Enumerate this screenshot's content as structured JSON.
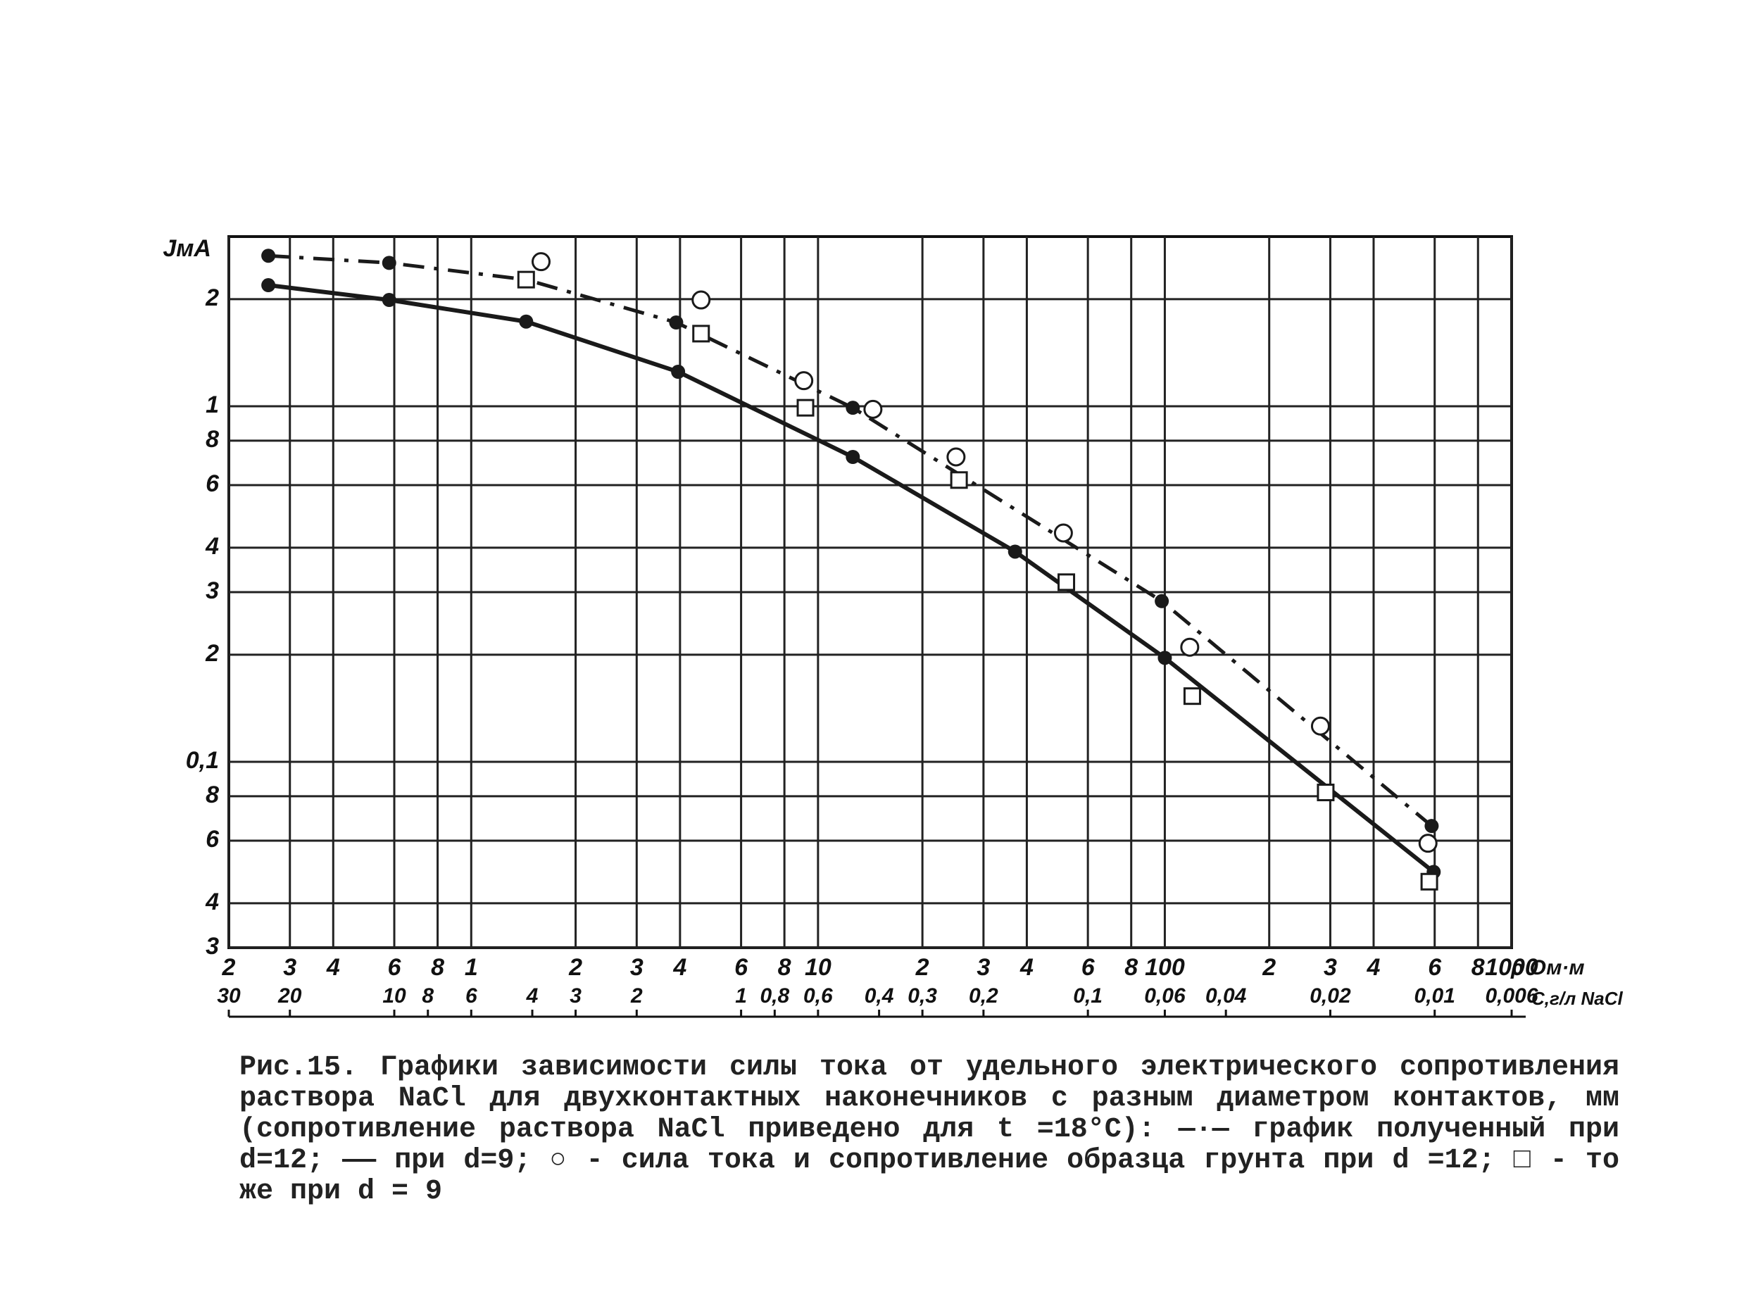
{
  "chart_data": {
    "type": "line",
    "y_label": "JмА",
    "x_label": "ρ Ом·м",
    "x2_label": "C,г/л NaCl",
    "xscale": "log",
    "yscale": "log",
    "x2scale": "log",
    "grid": true,
    "xlim": [
      0.2,
      1000
    ],
    "ylim": [
      0.03,
      3
    ],
    "x2lim": [
      30,
      0.006
    ],
    "xticks": [
      {
        "value": 0.2,
        "label": "2"
      },
      {
        "value": 0.3,
        "label": "3"
      },
      {
        "value": 0.4,
        "label": "4"
      },
      {
        "value": 0.6,
        "label": "6"
      },
      {
        "value": 0.8,
        "label": "8"
      },
      1,
      2,
      3,
      4,
      6,
      8,
      10,
      {
        "value": 20,
        "label": "2"
      },
      {
        "value": 30,
        "label": "3"
      },
      {
        "value": 40,
        "label": "4"
      },
      {
        "value": 60,
        "label": "6"
      },
      {
        "value": 80,
        "label": "8"
      },
      100,
      {
        "value": 200,
        "label": "2"
      },
      {
        "value": 300,
        "label": "3"
      },
      {
        "value": 400,
        "label": "4"
      },
      {
        "value": 600,
        "label": "6"
      },
      {
        "value": 800,
        "label": "8"
      },
      1000
    ],
    "yticks": [
      2,
      1,
      {
        "value": 0.8,
        "label": "8"
      },
      {
        "value": 0.6,
        "label": "6"
      },
      {
        "value": 0.4,
        "label": "4"
      },
      {
        "value": 0.3,
        "label": "3"
      },
      {
        "value": 0.2,
        "label": "2"
      },
      {
        "value": 0.1,
        "label": "0,1"
      },
      {
        "value": 0.08,
        "label": "8"
      },
      {
        "value": 0.06,
        "label": "6"
      },
      {
        "value": 0.04,
        "label": "4"
      },
      {
        "value": 0.03,
        "label": "3"
      }
    ],
    "x2ticks": [
      30,
      20,
      10,
      8,
      6,
      4,
      3,
      2,
      1,
      {
        "value": 0.8,
        "label": "0,8"
      },
      {
        "value": 0.6,
        "label": "0,6"
      },
      {
        "value": 0.4,
        "label": "0,4"
      },
      {
        "value": 0.3,
        "label": "0,3"
      },
      {
        "value": 0.2,
        "label": "0,2"
      },
      {
        "value": 0.1,
        "label": "0,1"
      },
      {
        "value": 0.06,
        "label": "0,06"
      },
      {
        "value": 0.04,
        "label": "0,04"
      },
      {
        "value": 0.02,
        "label": "0,02"
      },
      {
        "value": 0.01,
        "label": "0,01"
      },
      {
        "value": 0.006,
        "label": "0,006"
      }
    ],
    "series": [
      {
        "color": "#1a1a1a",
        "line": "dashed",
        "marker": "filled-circle",
        "x": [
          0.26,
          0.58,
          1.44,
          3.9,
          12.6,
          98,
          588
        ],
        "values": [
          2.65,
          2.53,
          2.27,
          1.72,
          0.99,
          0.283,
          0.066
        ]
      },
      {
        "color": "#1a1a1a",
        "line": "solid",
        "marker": "filled-circle",
        "x": [
          0.26,
          0.58,
          1.44,
          3.95,
          12.6,
          37,
          100,
          596
        ],
        "values": [
          2.19,
          1.99,
          1.73,
          1.25,
          0.72,
          0.39,
          0.196,
          0.049
        ]
      },
      {
        "color": "#1a1a1a",
        "line": "none",
        "marker": "open-circle",
        "x": [
          1.59,
          4.6,
          9.1,
          14.4,
          25,
          51,
          118,
          281,
          574
        ],
        "values": [
          2.55,
          1.99,
          1.18,
          0.98,
          0.72,
          0.44,
          0.21,
          0.126,
          0.059
        ]
      },
      {
        "color": "#1a1a1a",
        "line": "none",
        "marker": "square",
        "x": [
          1.44,
          4.6,
          9.2,
          25.5,
          52,
          120,
          291,
          579
        ],
        "values": [
          2.27,
          1.6,
          0.99,
          0.62,
          0.32,
          0.153,
          0.082,
          0.046
        ]
      }
    ],
    "caption": "Рис.15. Графики зависимости силы тока от удельного электрического сопротивления раствора NaCl для двухконтактных наконечников с разным диаметром контактов, мм (сопротивление раствора NaCl приведено для t =18°C): —·— график полученный при d=12; —— при d=9; ○ - сила тока и сопротивление образца грунта при d =12; □ - то же при d = 9"
  }
}
